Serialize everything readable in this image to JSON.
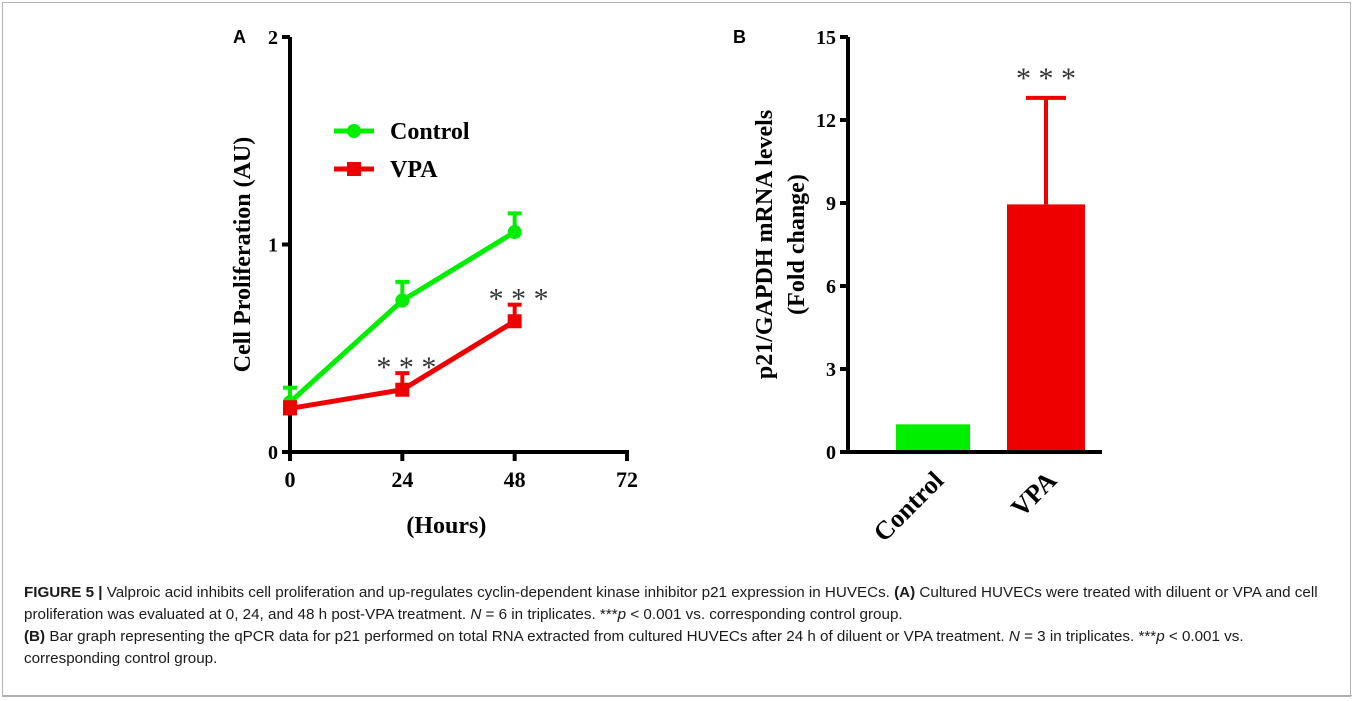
{
  "panel_a_label": "A",
  "panel_b_label": "B",
  "chart_data": [
    {
      "type": "line",
      "xlabel": "(Hours)",
      "ylabel": "Cell Proliferation (AU)",
      "x": [
        0,
        24,
        48
      ],
      "xticks": [
        "0",
        "24",
        "48",
        "72"
      ],
      "xlim": [
        0,
        72
      ],
      "yticks": [
        "0",
        "1",
        "2"
      ],
      "ylim": [
        0,
        2
      ],
      "legend": "top-left",
      "series": [
        {
          "name": "Control",
          "color": "#00ee00",
          "values": [
            0.24,
            0.73,
            1.06
          ],
          "errors": [
            0.07,
            0.09,
            0.09
          ]
        },
        {
          "name": "VPA",
          "color": "#ee0000",
          "values": [
            0.21,
            0.3,
            0.63
          ],
          "errors": [
            0.03,
            0.08,
            0.08
          ]
        }
      ],
      "annotations": [
        {
          "text": "* * *",
          "x": 24,
          "y": 0.42
        },
        {
          "text": "* * *",
          "x": 48,
          "y": 0.75
        }
      ]
    },
    {
      "type": "bar",
      "ylabel": "p21/GAPDH mRNA levels (Fold change)",
      "ylabel_lines": [
        "p21/GAPDH mRNA levels",
        "(Fold change)"
      ],
      "categories": [
        "Control",
        "VPA"
      ],
      "values": [
        1.0,
        8.95
      ],
      "errors": [
        0,
        3.85
      ],
      "colors": [
        "#00ee00",
        "#ee0000"
      ],
      "yticks": [
        "0",
        "3",
        "6",
        "9",
        "12",
        "15"
      ],
      "ylim": [
        0,
        15
      ],
      "annotations": [
        {
          "text": "* * *",
          "category": "VPA"
        }
      ]
    }
  ],
  "caption": {
    "figure_label": "FIGURE 5 |",
    "intro": " Valproic acid inhibits cell proliferation and up-regulates cyclin-dependent kinase inhibitor p21 expression in HUVECs. ",
    "a_tag": "(A)",
    "a_text1": " Cultured HUVECs were treated with diluent or VPA and cell proliferation was evaluated at 0, 24, and 48 h post-VPA treatment. ",
    "a_n": "N",
    "a_text2": " = 6 in triplicates. ***",
    "a_p": "p",
    "a_text3": " < 0.001 vs. corresponding control group.",
    "b_tag": "(B)",
    "b_text1": " Bar graph representing the qPCR data for p21 performed on total RNA extracted from cultured HUVECs after 24 h of diluent or VPA treatment. ",
    "b_n": "N",
    "b_text2": " = 3 in triplicates. ***",
    "b_p": "p",
    "b_text3": " < 0.001 vs. corresponding control group."
  }
}
